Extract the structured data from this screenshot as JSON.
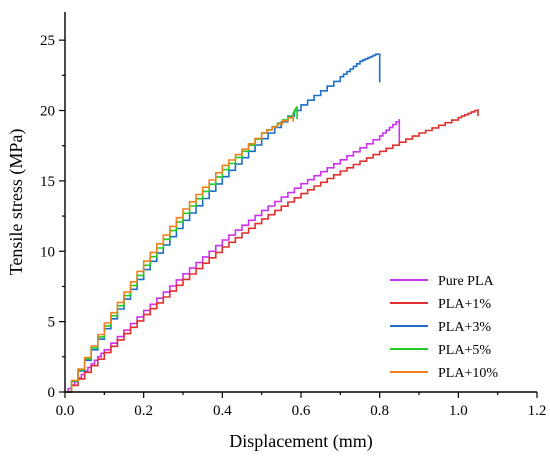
{
  "chart_data": {
    "type": "line",
    "title": "",
    "xlabel": "Displacement (mm)",
    "ylabel": "Tensile stress (MPa)",
    "xlim": [
      0.0,
      1.2
    ],
    "ylim": [
      0,
      27
    ],
    "xticks": [
      "0.0",
      "0.2",
      "0.4",
      "0.6",
      "0.8",
      "1.0",
      "1.2"
    ],
    "yticks": [
      "0",
      "5",
      "10",
      "15",
      "20",
      "25"
    ],
    "xtick_values": [
      0.0,
      0.2,
      0.4,
      0.6,
      0.8,
      1.0,
      1.2
    ],
    "ytick_values": [
      0,
      5,
      10,
      15,
      20,
      25
    ],
    "grid": false,
    "legend_position": "bottom-right",
    "series": [
      {
        "name": "Pure PLA",
        "color": "#cc33ee",
        "points": [
          [
            0.0,
            0.0
          ],
          [
            0.05,
            1.5
          ],
          [
            0.1,
            3.0
          ],
          [
            0.2,
            5.8
          ],
          [
            0.3,
            8.4
          ],
          [
            0.4,
            10.8
          ],
          [
            0.5,
            12.9
          ],
          [
            0.6,
            14.8
          ],
          [
            0.7,
            16.5
          ],
          [
            0.8,
            18.2
          ],
          [
            0.85,
            19.4
          ],
          [
            0.85,
            17.5
          ]
        ]
      },
      {
        "name": "PLA+1%",
        "color": "#e03030",
        "points": [
          [
            0.0,
            0.0
          ],
          [
            0.1,
            2.8
          ],
          [
            0.2,
            5.5
          ],
          [
            0.3,
            8.0
          ],
          [
            0.4,
            10.3
          ],
          [
            0.5,
            12.3
          ],
          [
            0.6,
            14.1
          ],
          [
            0.7,
            15.7
          ],
          [
            0.8,
            17.1
          ],
          [
            0.9,
            18.4
          ],
          [
            1.0,
            19.5
          ],
          [
            1.05,
            20.1
          ],
          [
            1.05,
            19.6
          ]
        ]
      },
      {
        "name": "PLA+3%",
        "color": "#1f6ec8",
        "points": [
          [
            0.0,
            0.0
          ],
          [
            0.1,
            4.5
          ],
          [
            0.2,
            8.7
          ],
          [
            0.3,
            12.2
          ],
          [
            0.4,
            15.3
          ],
          [
            0.5,
            18.0
          ],
          [
            0.6,
            20.4
          ],
          [
            0.7,
            22.4
          ],
          [
            0.75,
            23.5
          ],
          [
            0.79,
            24.0
          ],
          [
            0.8,
            24.0
          ],
          [
            0.8,
            22.0
          ]
        ]
      },
      {
        "name": "PLA+5%",
        "color": "#22cc22",
        "points": [
          [
            0.0,
            0.0
          ],
          [
            0.1,
            4.7
          ],
          [
            0.2,
            9.0
          ],
          [
            0.3,
            12.7
          ],
          [
            0.4,
            15.8
          ],
          [
            0.5,
            18.4
          ],
          [
            0.58,
            19.8
          ],
          [
            0.59,
            20.3
          ],
          [
            0.59,
            19.4
          ]
        ]
      },
      {
        "name": "PLA+10%",
        "color": "#f08020",
        "points": [
          [
            0.0,
            0.0
          ],
          [
            0.1,
            4.9
          ],
          [
            0.2,
            9.3
          ],
          [
            0.3,
            13.0
          ],
          [
            0.4,
            16.1
          ],
          [
            0.5,
            18.4
          ],
          [
            0.58,
            19.7
          ],
          [
            0.58,
            19.2
          ]
        ]
      }
    ]
  }
}
